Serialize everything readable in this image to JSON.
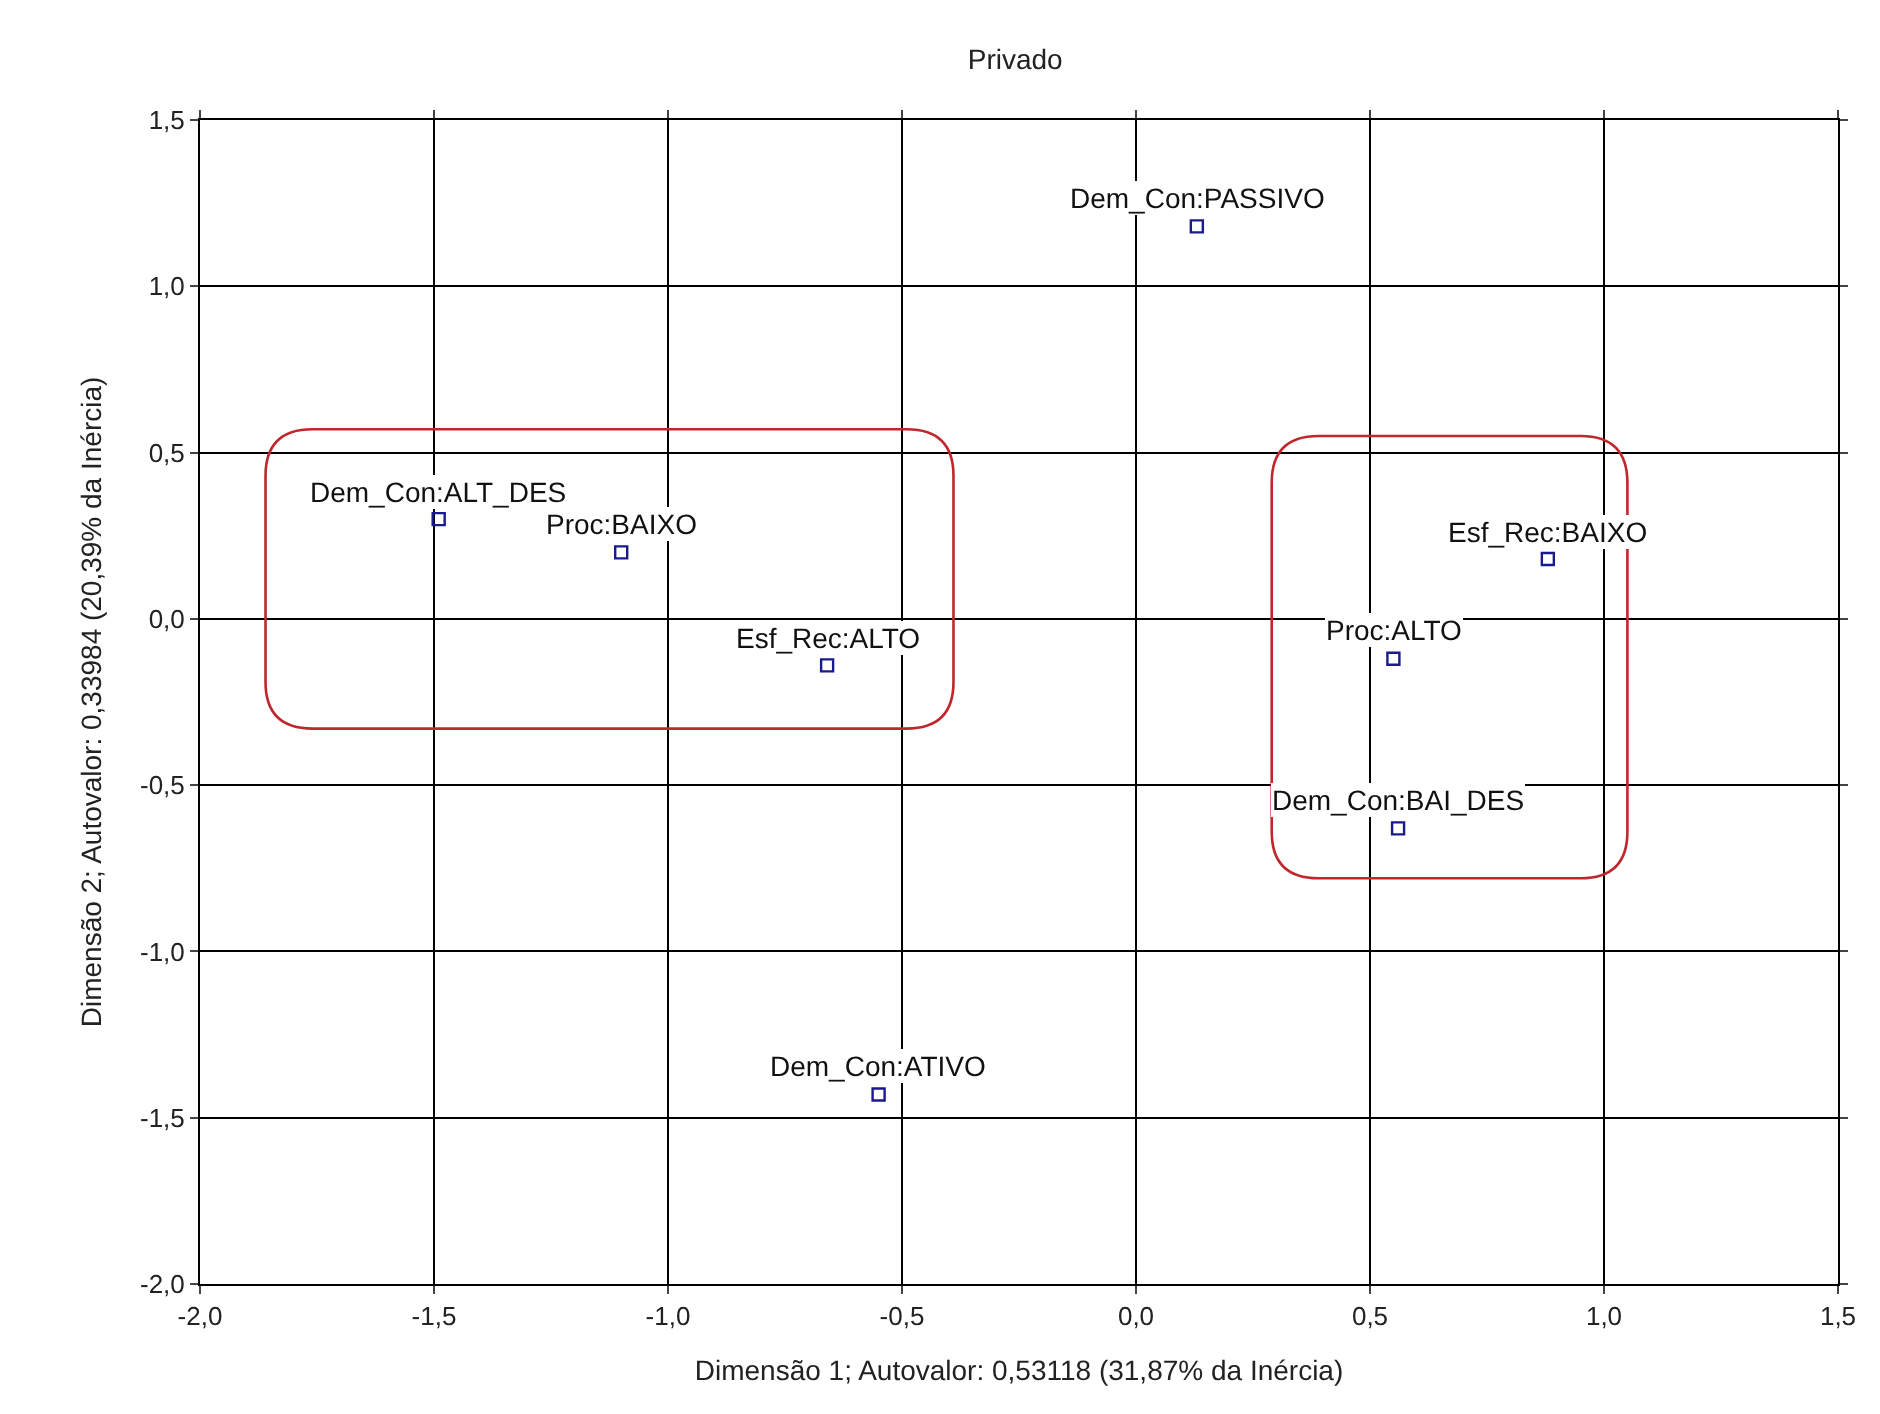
{
  "chart_data": {
    "type": "scatter",
    "title": "Privado",
    "xlabel": "Dimensão 1; Autovalor: 0,53118 (31,87% da Inércia)",
    "ylabel": "Dimensão 2; Autovalor: 0,33984 (20,39% da Inércia)",
    "x": [
      0.13,
      -1.49,
      -1.1,
      -0.66,
      0.55,
      0.88,
      0.56,
      -0.55
    ],
    "series": [
      {
        "color": "#1a1a8c",
        "values": [
          1.18,
          0.3,
          0.2,
          -0.14,
          -0.12,
          0.18,
          -0.63,
          -1.43
        ]
      }
    ],
    "annotations": [
      {
        "text": "Dem_Con:PASSIVO",
        "x": 0.13,
        "y": 1.18
      },
      {
        "text": "Dem_Con:ALT_DES",
        "x": -1.49,
        "y": 0.3
      },
      {
        "text": "Proc:BAIXO",
        "x": -1.1,
        "y": 0.2
      },
      {
        "text": "Esf_Rec:ALTO",
        "x": -0.66,
        "y": -0.14
      },
      {
        "text": "Proc:ALTO",
        "x": 0.55,
        "y": -0.12
      },
      {
        "text": "Esf_Rec:BAIXO",
        "x": 0.88,
        "y": 0.18
      },
      {
        "text": "Dem_Con:BAI_DES",
        "x": 0.56,
        "y": -0.63
      },
      {
        "text": "Dem_Con:ATIVO",
        "x": -0.55,
        "y": -1.43
      }
    ],
    "xlim": [
      -2.0,
      1.5
    ],
    "xticks": [
      {
        "value": -2.0,
        "label": "-2,0"
      },
      {
        "value": -1.5,
        "label": "-1,5"
      },
      {
        "value": -1.0,
        "label": "-1,0"
      },
      {
        "value": -0.5,
        "label": "-0,5"
      },
      {
        "value": 0.0,
        "label": "0,0"
      },
      {
        "value": 0.5,
        "label": "0,5"
      },
      {
        "value": 1.0,
        "label": "1,0"
      },
      {
        "value": 1.5,
        "label": "1,5"
      }
    ],
    "ylim": [
      -2.0,
      1.5
    ],
    "yticks": [
      {
        "value": -2.0,
        "label": "-2,0"
      },
      {
        "value": -1.5,
        "label": "-1,5"
      },
      {
        "value": -1.0,
        "label": "-1,0"
      },
      {
        "value": -0.5,
        "label": "-0,5"
      },
      {
        "value": 0.0,
        "label": "0,0"
      },
      {
        "value": 0.5,
        "label": "0,5"
      },
      {
        "value": 1.0,
        "label": "1,0"
      },
      {
        "value": 1.5,
        "label": "1,5"
      }
    ],
    "grid": true,
    "marker": "square"
  }
}
